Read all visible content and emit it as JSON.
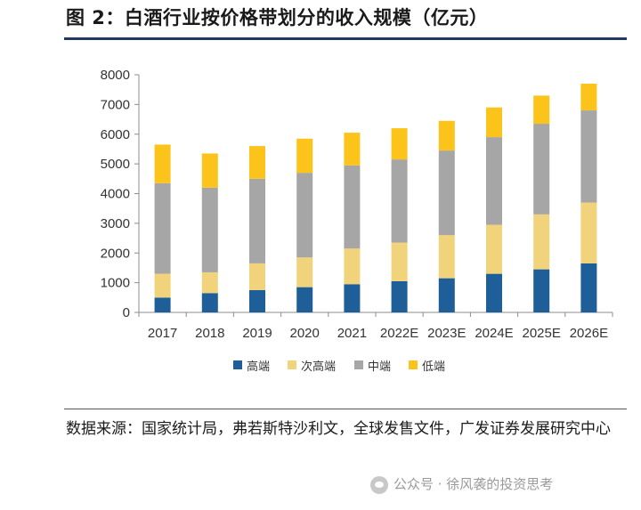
{
  "page": {
    "title": "图 2：白酒行业按价格带划分的收入规模（亿元）",
    "source_text": "数据来源：国家统计局，弗若斯特沙利文，全球发售文件，广发证券发展研究中心",
    "watermark_text": "公众号 · 徐风袭的投资思考"
  },
  "chart_data": {
    "type": "bar",
    "stacked": true,
    "title": "白酒行业按价格带划分的收入规模（亿元）",
    "xlabel": "",
    "ylabel": "",
    "ylim": [
      0,
      8000
    ],
    "yticks": [
      0,
      1000,
      2000,
      3000,
      4000,
      5000,
      6000,
      7000,
      8000
    ],
    "categories": [
      "2017",
      "2018",
      "2019",
      "2020",
      "2021",
      "2022E",
      "2023E",
      "2024E",
      "2025E",
      "2026E"
    ],
    "series": [
      {
        "name": "高端",
        "color": "#1f5f99",
        "values": [
          500,
          650,
          750,
          850,
          950,
          1050,
          1150,
          1300,
          1450,
          1650
        ]
      },
      {
        "name": "次高端",
        "color": "#f0d37a",
        "values": [
          800,
          700,
          900,
          1000,
          1200,
          1300,
          1450,
          1650,
          1850,
          2050
        ]
      },
      {
        "name": "中端",
        "color": "#a6a6a6",
        "values": [
          3050,
          2850,
          2850,
          2850,
          2800,
          2800,
          2850,
          2950,
          3050,
          3100
        ]
      },
      {
        "name": "低端",
        "color": "#fcc31b",
        "values": [
          1300,
          1150,
          1100,
          1150,
          1100,
          1050,
          1000,
          1000,
          950,
          900
        ]
      }
    ],
    "legend": "bottom",
    "grid": false
  }
}
